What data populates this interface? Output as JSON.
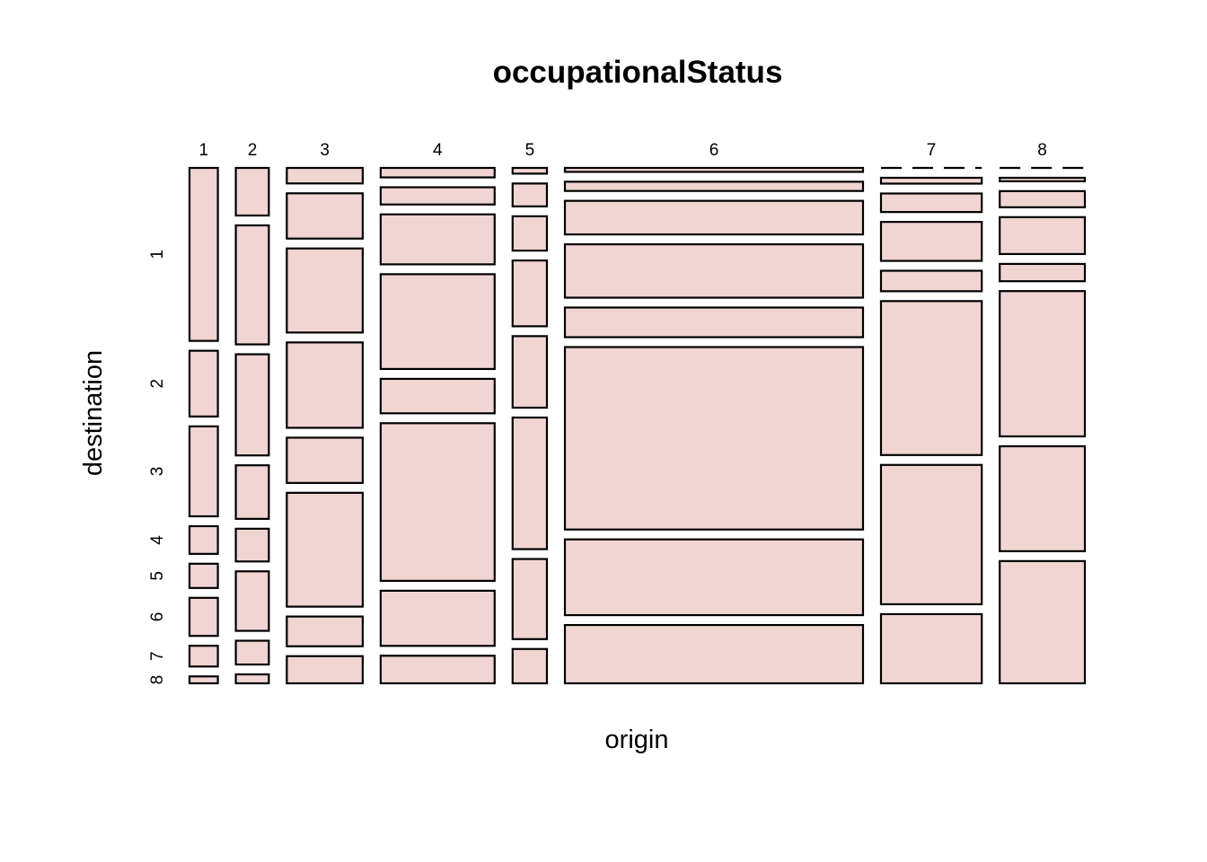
{
  "chart_data": {
    "type": "mosaic",
    "title": "occupationalStatus",
    "xlabel": "origin",
    "ylabel": "destination",
    "origin_levels": [
      "1",
      "2",
      "3",
      "4",
      "5",
      "6",
      "7",
      "8"
    ],
    "destination_levels": [
      "1",
      "2",
      "3",
      "4",
      "5",
      "6",
      "7",
      "8"
    ],
    "tile_color": "#f0d5d3",
    "border_color": "#000000",
    "counts": [
      [
        50,
        19,
        26,
        8,
        7,
        11,
        6,
        2
      ],
      [
        16,
        40,
        34,
        18,
        11,
        20,
        8,
        3
      ],
      [
        12,
        35,
        65,
        66,
        35,
        88,
        23,
        21
      ],
      [
        11,
        20,
        58,
        110,
        40,
        183,
        64,
        32
      ],
      [
        2,
        8,
        12,
        23,
        25,
        46,
        28,
        12
      ],
      [
        12,
        28,
        102,
        162,
        90,
        554,
        230,
        177
      ],
      [
        0,
        6,
        19,
        40,
        21,
        158,
        143,
        71
      ],
      [
        0,
        3,
        14,
        32,
        15,
        126,
        91,
        106
      ]
    ]
  }
}
